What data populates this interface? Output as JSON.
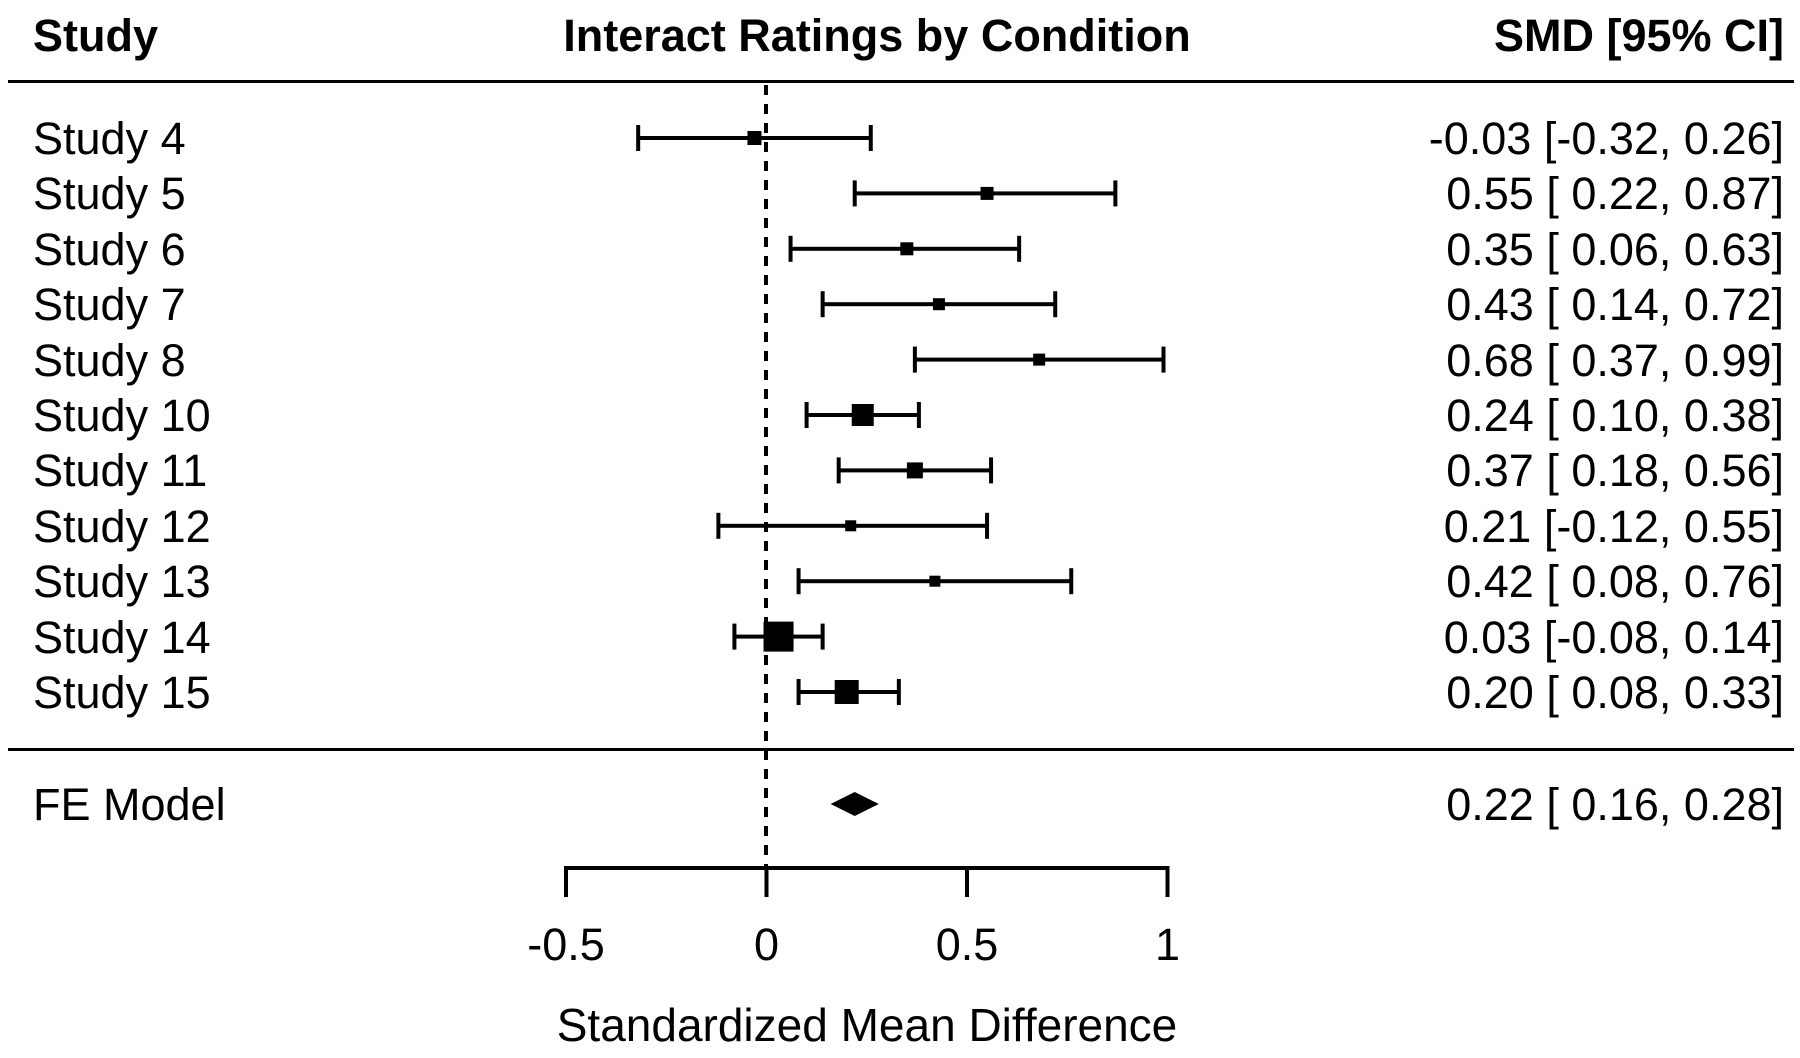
{
  "header": {
    "study_column": "Study",
    "smd_column": "SMD [95% CI]"
  },
  "chart_data": {
    "type": "forest",
    "title": "Interact Ratings by Condition",
    "xlabel": "Standardized Mean Difference",
    "xlim": [
      -0.5,
      1
    ],
    "x_ticks": [
      -0.5,
      0,
      0.5,
      1
    ],
    "x_tick_labels": [
      "-0.5",
      "0",
      "0.5",
      "1"
    ],
    "reference_line": 0,
    "studies": [
      {
        "label": "Study 4",
        "est": -0.03,
        "lo": -0.32,
        "hi": 0.26,
        "text": "-0.03 [-0.32, 0.26]",
        "marker_size": 14
      },
      {
        "label": "Study 5",
        "est": 0.55,
        "lo": 0.22,
        "hi": 0.87,
        "text": "0.55 [ 0.22, 0.87]",
        "marker_size": 13
      },
      {
        "label": "Study 6",
        "est": 0.35,
        "lo": 0.06,
        "hi": 0.63,
        "text": "0.35 [ 0.06, 0.63]",
        "marker_size": 13
      },
      {
        "label": "Study 7",
        "est": 0.43,
        "lo": 0.14,
        "hi": 0.72,
        "text": "0.43 [ 0.14, 0.72]",
        "marker_size": 12
      },
      {
        "label": "Study 8",
        "est": 0.68,
        "lo": 0.37,
        "hi": 0.99,
        "text": "0.68 [ 0.37, 0.99]",
        "marker_size": 12
      },
      {
        "label": "Study 10",
        "est": 0.24,
        "lo": 0.1,
        "hi": 0.38,
        "text": "0.24 [ 0.10, 0.38]",
        "marker_size": 22
      },
      {
        "label": "Study 11",
        "est": 0.37,
        "lo": 0.18,
        "hi": 0.56,
        "text": "0.37 [ 0.18, 0.56]",
        "marker_size": 16
      },
      {
        "label": "Study 12",
        "est": 0.21,
        "lo": -0.12,
        "hi": 0.55,
        "text": "0.21 [-0.12, 0.55]",
        "marker_size": 11
      },
      {
        "label": "Study 13",
        "est": 0.42,
        "lo": 0.08,
        "hi": 0.76,
        "text": "0.42 [ 0.08, 0.76]",
        "marker_size": 11
      },
      {
        "label": "Study 14",
        "est": 0.03,
        "lo": -0.08,
        "hi": 0.14,
        "text": "0.03 [-0.08, 0.14]",
        "marker_size": 30
      },
      {
        "label": "Study 15",
        "est": 0.2,
        "lo": 0.08,
        "hi": 0.33,
        "text": "0.20 [ 0.08, 0.33]",
        "marker_size": 24
      }
    ],
    "summary": {
      "label": "FE Model",
      "est": 0.22,
      "lo": 0.16,
      "hi": 0.28,
      "text": "0.22 [ 0.16, 0.28]"
    }
  }
}
